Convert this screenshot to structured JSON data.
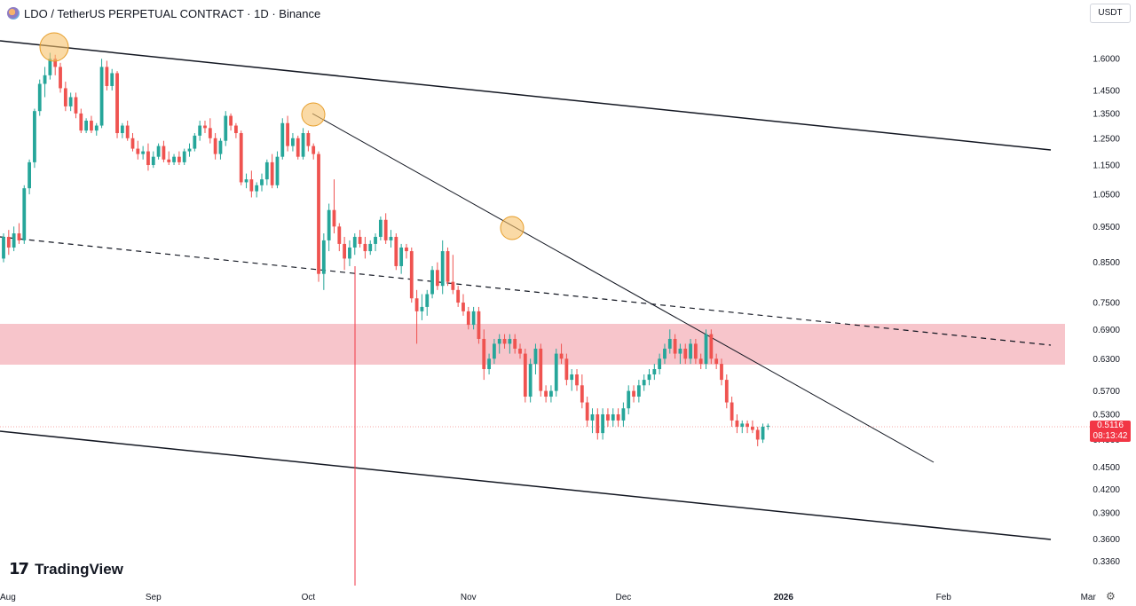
{
  "header": {
    "symbol": "LDO / TetherUS PERPETUAL CONTRACT · 1D · Binance"
  },
  "currency_button": "USDT",
  "brand": {
    "mark": "17",
    "name": "TradingView"
  },
  "last_price": {
    "price": "0.5116",
    "countdown": "08:13:42"
  },
  "settings_icon": "gear-icon",
  "colors": {
    "up": "#26a69a",
    "down": "#ef5350",
    "zone": "#f7c5cb",
    "line": "#131722",
    "circle": "#f6c26b",
    "marker": "#f23645"
  },
  "chart_data": {
    "type": "candlestick",
    "title": "LDO / TetherUS PERPETUAL CONTRACT · 1D · Binance",
    "y_scale": "log",
    "ylim": [
      0.32,
      1.72
    ],
    "x_ticks": [
      {
        "label": "Aug",
        "day": -2
      },
      {
        "label": "Sep",
        "day": 29
      },
      {
        "label": "Oct",
        "day": 59
      },
      {
        "label": "Nov",
        "day": 90
      },
      {
        "label": "Dec",
        "day": 120
      },
      {
        "label": "2026",
        "day": 151,
        "bold": true
      },
      {
        "label": "Feb",
        "day": 182
      },
      {
        "label": "Mar",
        "day": 210
      }
    ],
    "y_ticks": [
      "1.6000",
      "1.4500",
      "1.3500",
      "1.2500",
      "1.1500",
      "1.0500",
      "0.9500",
      "0.8500",
      "0.7500",
      "0.6900",
      "0.6300",
      "0.5700",
      "0.5300",
      "0.4900",
      "0.4500",
      "0.4200",
      "0.3900",
      "0.3600",
      "0.3360"
    ],
    "candles": [
      [
        0.86,
        0.93,
        0.85,
        0.92
      ],
      [
        0.92,
        0.94,
        0.87,
        0.89
      ],
      [
        0.89,
        0.95,
        0.88,
        0.93
      ],
      [
        0.93,
        0.96,
        0.9,
        0.91
      ],
      [
        0.91,
        1.08,
        0.9,
        1.07
      ],
      [
        1.07,
        1.17,
        1.05,
        1.16
      ],
      [
        1.16,
        1.37,
        1.14,
        1.36
      ],
      [
        1.36,
        1.5,
        1.34,
        1.48
      ],
      [
        1.48,
        1.56,
        1.42,
        1.52
      ],
      [
        1.52,
        1.63,
        1.5,
        1.6
      ],
      [
        1.6,
        1.62,
        1.52,
        1.56
      ],
      [
        1.56,
        1.58,
        1.44,
        1.46
      ],
      [
        1.46,
        1.49,
        1.36,
        1.38
      ],
      [
        1.38,
        1.44,
        1.36,
        1.42
      ],
      [
        1.42,
        1.44,
        1.33,
        1.35
      ],
      [
        1.35,
        1.37,
        1.27,
        1.28
      ],
      [
        1.28,
        1.33,
        1.27,
        1.32
      ],
      [
        1.32,
        1.34,
        1.27,
        1.28
      ],
      [
        1.28,
        1.31,
        1.26,
        1.3
      ],
      [
        1.3,
        1.6,
        1.29,
        1.56
      ],
      [
        1.56,
        1.59,
        1.45,
        1.47
      ],
      [
        1.47,
        1.55,
        1.45,
        1.53
      ],
      [
        1.53,
        1.54,
        1.25,
        1.27
      ],
      [
        1.27,
        1.31,
        1.25,
        1.3
      ],
      [
        1.3,
        1.32,
        1.24,
        1.25
      ],
      [
        1.25,
        1.27,
        1.2,
        1.21
      ],
      [
        1.21,
        1.24,
        1.17,
        1.19
      ],
      [
        1.19,
        1.22,
        1.17,
        1.2
      ],
      [
        1.2,
        1.23,
        1.13,
        1.15
      ],
      [
        1.15,
        1.2,
        1.14,
        1.18
      ],
      [
        1.18,
        1.23,
        1.17,
        1.22
      ],
      [
        1.22,
        1.24,
        1.16,
        1.17
      ],
      [
        1.17,
        1.2,
        1.15,
        1.16
      ],
      [
        1.16,
        1.19,
        1.15,
        1.18
      ],
      [
        1.18,
        1.2,
        1.15,
        1.16
      ],
      [
        1.16,
        1.21,
        1.15,
        1.2
      ],
      [
        1.2,
        1.23,
        1.18,
        1.21
      ],
      [
        1.21,
        1.27,
        1.2,
        1.26
      ],
      [
        1.26,
        1.32,
        1.24,
        1.3
      ],
      [
        1.3,
        1.32,
        1.27,
        1.29
      ],
      [
        1.29,
        1.33,
        1.23,
        1.25
      ],
      [
        1.25,
        1.27,
        1.17,
        1.19
      ],
      [
        1.19,
        1.25,
        1.17,
        1.24
      ],
      [
        1.24,
        1.36,
        1.22,
        1.34
      ],
      [
        1.34,
        1.35,
        1.28,
        1.3
      ],
      [
        1.3,
        1.31,
        1.25,
        1.27
      ],
      [
        1.27,
        1.28,
        1.08,
        1.09
      ],
      [
        1.09,
        1.12,
        1.07,
        1.1
      ],
      [
        1.1,
        1.13,
        1.04,
        1.06
      ],
      [
        1.06,
        1.09,
        1.04,
        1.08
      ],
      [
        1.08,
        1.12,
        1.06,
        1.1
      ],
      [
        1.1,
        1.17,
        1.08,
        1.16
      ],
      [
        1.16,
        1.19,
        1.07,
        1.08
      ],
      [
        1.08,
        1.2,
        1.07,
        1.18
      ],
      [
        1.18,
        1.33,
        1.17,
        1.31
      ],
      [
        1.31,
        1.34,
        1.2,
        1.22
      ],
      [
        1.22,
        1.27,
        1.2,
        1.25
      ],
      [
        1.25,
        1.26,
        1.17,
        1.18
      ],
      [
        1.18,
        1.29,
        1.17,
        1.27
      ],
      [
        1.27,
        1.28,
        1.2,
        1.22
      ],
      [
        1.22,
        1.23,
        1.17,
        1.19
      ],
      [
        1.19,
        1.2,
        0.8,
        0.82
      ],
      [
        0.82,
        0.93,
        0.78,
        0.91
      ],
      [
        0.91,
        1.02,
        0.88,
        1.0
      ],
      [
        1.0,
        1.1,
        0.93,
        0.95
      ],
      [
        0.95,
        0.96,
        0.88,
        0.9
      ],
      [
        0.9,
        0.92,
        0.83,
        0.86
      ],
      [
        0.86,
        0.91,
        0.84,
        0.89
      ],
      [
        0.89,
        0.93,
        0.87,
        0.92
      ],
      [
        0.92,
        0.94,
        0.89,
        0.9
      ],
      [
        0.9,
        0.92,
        0.86,
        0.88
      ],
      [
        0.88,
        0.91,
        0.87,
        0.9
      ],
      [
        0.9,
        0.93,
        0.88,
        0.92
      ],
      [
        0.92,
        0.98,
        0.91,
        0.97
      ],
      [
        0.97,
        0.99,
        0.9,
        0.91
      ],
      [
        0.91,
        0.94,
        0.89,
        0.92
      ],
      [
        0.92,
        0.93,
        0.83,
        0.84
      ],
      [
        0.84,
        0.9,
        0.82,
        0.89
      ],
      [
        0.89,
        0.9,
        0.86,
        0.88
      ],
      [
        0.88,
        0.89,
        0.75,
        0.76
      ],
      [
        0.76,
        0.78,
        0.66,
        0.73
      ],
      [
        0.73,
        0.77,
        0.71,
        0.74
      ],
      [
        0.74,
        0.78,
        0.72,
        0.77
      ],
      [
        0.77,
        0.84,
        0.76,
        0.83
      ],
      [
        0.83,
        0.85,
        0.78,
        0.79
      ],
      [
        0.79,
        0.91,
        0.77,
        0.88
      ],
      [
        0.88,
        0.89,
        0.79,
        0.8
      ],
      [
        0.8,
        0.87,
        0.77,
        0.78
      ],
      [
        0.78,
        0.79,
        0.74,
        0.75
      ],
      [
        0.75,
        0.77,
        0.72,
        0.73
      ],
      [
        0.73,
        0.74,
        0.69,
        0.7
      ],
      [
        0.7,
        0.74,
        0.69,
        0.73
      ],
      [
        0.73,
        0.74,
        0.66,
        0.67
      ],
      [
        0.67,
        0.69,
        0.59,
        0.61
      ],
      [
        0.61,
        0.64,
        0.6,
        0.63
      ],
      [
        0.63,
        0.67,
        0.62,
        0.66
      ],
      [
        0.66,
        0.68,
        0.64,
        0.67
      ],
      [
        0.67,
        0.68,
        0.65,
        0.66
      ],
      [
        0.66,
        0.68,
        0.64,
        0.67
      ],
      [
        0.67,
        0.68,
        0.64,
        0.65
      ],
      [
        0.65,
        0.66,
        0.63,
        0.64
      ],
      [
        0.64,
        0.65,
        0.55,
        0.56
      ],
      [
        0.56,
        0.63,
        0.55,
        0.62
      ],
      [
        0.62,
        0.66,
        0.6,
        0.65
      ],
      [
        0.65,
        0.66,
        0.56,
        0.57
      ],
      [
        0.57,
        0.58,
        0.55,
        0.56
      ],
      [
        0.56,
        0.58,
        0.55,
        0.57
      ],
      [
        0.57,
        0.65,
        0.56,
        0.64
      ],
      [
        0.64,
        0.66,
        0.62,
        0.63
      ],
      [
        0.63,
        0.64,
        0.58,
        0.59
      ],
      [
        0.59,
        0.61,
        0.57,
        0.6
      ],
      [
        0.6,
        0.61,
        0.57,
        0.58
      ],
      [
        0.58,
        0.6,
        0.54,
        0.55
      ],
      [
        0.55,
        0.56,
        0.51,
        0.52
      ],
      [
        0.52,
        0.54,
        0.5,
        0.53
      ],
      [
        0.53,
        0.54,
        0.49,
        0.5
      ],
      [
        0.5,
        0.54,
        0.49,
        0.53
      ],
      [
        0.53,
        0.54,
        0.51,
        0.52
      ],
      [
        0.52,
        0.54,
        0.51,
        0.53
      ],
      [
        0.53,
        0.54,
        0.51,
        0.52
      ],
      [
        0.52,
        0.55,
        0.51,
        0.54
      ],
      [
        0.54,
        0.58,
        0.53,
        0.57
      ],
      [
        0.57,
        0.58,
        0.55,
        0.56
      ],
      [
        0.56,
        0.59,
        0.55,
        0.58
      ],
      [
        0.58,
        0.6,
        0.57,
        0.59
      ],
      [
        0.59,
        0.61,
        0.58,
        0.6
      ],
      [
        0.6,
        0.62,
        0.59,
        0.61
      ],
      [
        0.61,
        0.64,
        0.6,
        0.63
      ],
      [
        0.63,
        0.66,
        0.62,
        0.65
      ],
      [
        0.65,
        0.69,
        0.64,
        0.67
      ],
      [
        0.67,
        0.68,
        0.63,
        0.64
      ],
      [
        0.64,
        0.66,
        0.62,
        0.65
      ],
      [
        0.65,
        0.66,
        0.62,
        0.63
      ],
      [
        0.63,
        0.67,
        0.62,
        0.66
      ],
      [
        0.66,
        0.67,
        0.62,
        0.63
      ],
      [
        0.63,
        0.64,
        0.61,
        0.62
      ],
      [
        0.62,
        0.69,
        0.61,
        0.68
      ],
      [
        0.68,
        0.69,
        0.62,
        0.63
      ],
      [
        0.63,
        0.64,
        0.61,
        0.62
      ],
      [
        0.62,
        0.63,
        0.58,
        0.59
      ],
      [
        0.59,
        0.6,
        0.54,
        0.55
      ],
      [
        0.55,
        0.56,
        0.51,
        0.52
      ],
      [
        0.52,
        0.53,
        0.5,
        0.51
      ],
      [
        0.51,
        0.52,
        0.5,
        0.515
      ],
      [
        0.515,
        0.52,
        0.5,
        0.51
      ],
      [
        0.51,
        0.52,
        0.5,
        0.505
      ],
      [
        0.505,
        0.51,
        0.48,
        0.49
      ],
      [
        0.49,
        0.515,
        0.485,
        0.51
      ],
      [
        0.51,
        0.515,
        0.505,
        0.5116
      ]
    ]
  }
}
